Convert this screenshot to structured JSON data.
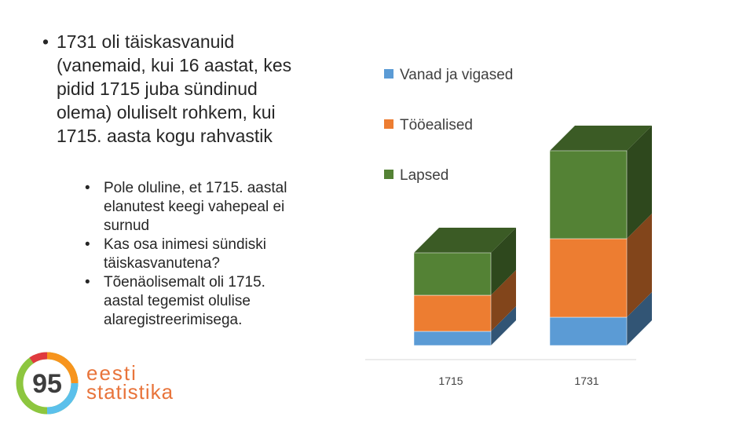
{
  "slide": {
    "bullet": "1731 oli täiskasvanuid (vanemaid, kui 16 aastat, kes pidid 1715 juba sündinud olema) oluliselt rohkem, kui 1715. aasta kogu rahvastik",
    "subbullets": [
      "Pole oluline, et 1715. aastal elanutest keegi vahepeal ei surnud",
      "Kas osa inimesi sündiski täiskasvanutena?",
      "Tõenäolisemalt oli 1715. aastal tegemist olulise alaregistreerimisega."
    ]
  },
  "logo": {
    "number": "95",
    "line1": "eesti",
    "line2": "statistika"
  },
  "chart_data": {
    "type": "bar3d-stacked",
    "categories": [
      "1715",
      "1731"
    ],
    "series": [
      {
        "name": "Vanad ja vigased",
        "color": "#5b9bd5",
        "values": [
          18,
          36
        ]
      },
      {
        "name": "Tööealised",
        "color": "#ed7d31",
        "values": [
          46,
          100
        ]
      },
      {
        "name": "Lapsed",
        "color": "#548235",
        "values": [
          54,
          112
        ]
      }
    ]
  }
}
